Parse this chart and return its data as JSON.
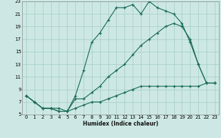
{
  "xlabel": "Humidex (Indice chaleur)",
  "bg_color": "#cde8e4",
  "grid_color": "#a8cfc8",
  "line_color": "#1a6b5a",
  "line1_x": [
    0,
    1,
    2,
    3,
    4,
    5,
    6,
    7,
    8,
    9,
    10,
    11,
    12,
    13,
    14,
    15,
    16,
    17,
    18,
    19,
    20,
    21,
    22,
    23
  ],
  "line1_y": [
    8,
    7,
    6,
    6,
    6,
    5.5,
    8,
    12,
    16.5,
    18,
    20,
    22,
    22,
    22.5,
    21,
    23,
    22,
    21.5,
    21,
    19.5,
    16.5,
    13,
    10,
    10
  ],
  "line2_x": [
    0,
    1,
    2,
    3,
    4,
    5,
    6,
    7,
    8,
    9,
    10,
    11,
    12,
    13,
    14,
    15,
    16,
    17,
    18,
    19,
    20,
    21,
    22,
    23
  ],
  "line2_y": [
    8,
    7,
    6,
    6,
    5.5,
    5.5,
    7.5,
    7.5,
    8.5,
    9.5,
    11,
    12,
    13,
    14.5,
    16,
    17,
    18,
    19,
    19.5,
    19,
    17,
    13,
    10,
    10
  ],
  "line3_x": [
    0,
    1,
    2,
    3,
    4,
    5,
    6,
    7,
    8,
    9,
    10,
    11,
    12,
    13,
    14,
    15,
    16,
    17,
    18,
    19,
    20,
    21,
    22,
    23
  ],
  "line3_y": [
    8,
    7,
    6,
    6,
    5.5,
    5.5,
    6,
    6.5,
    7,
    7,
    7.5,
    8,
    8.5,
    9,
    9.5,
    9.5,
    9.5,
    9.5,
    9.5,
    9.5,
    9.5,
    9.5,
    10,
    10
  ],
  "xlim": [
    -0.5,
    23.5
  ],
  "ylim": [
    5,
    23
  ],
  "xticks": [
    0,
    1,
    2,
    3,
    4,
    5,
    6,
    7,
    8,
    9,
    10,
    11,
    12,
    13,
    14,
    15,
    16,
    17,
    18,
    19,
    20,
    21,
    22,
    23
  ],
  "yticks": [
    5,
    7,
    9,
    11,
    13,
    15,
    17,
    19,
    21,
    23
  ]
}
